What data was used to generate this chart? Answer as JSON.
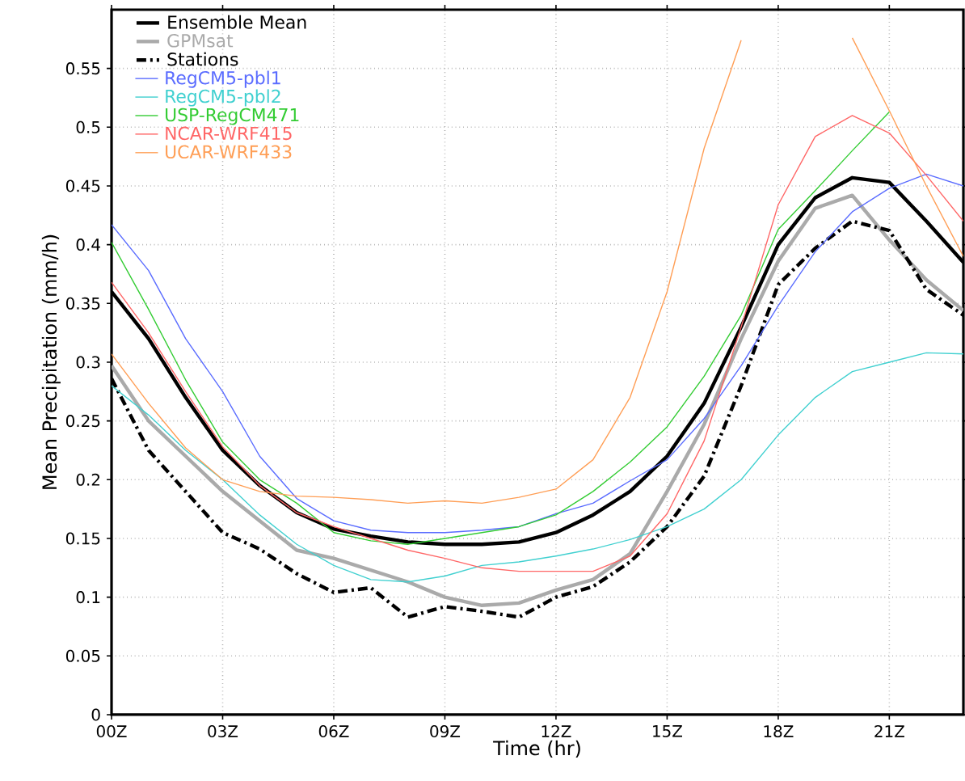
{
  "chart_data": {
    "type": "line",
    "xlabel": "Time (hr)",
    "ylabel": "Mean Precipitation (mm/h)",
    "x": [
      0,
      1,
      2,
      3,
      4,
      5,
      6,
      7,
      8,
      9,
      10,
      11,
      12,
      13,
      14,
      15,
      16,
      17,
      18,
      19,
      20,
      21,
      22,
      23
    ],
    "xlim": [
      0,
      23
    ],
    "ylim": [
      0,
      0.6
    ],
    "xticks": [
      {
        "value": 0,
        "label": "00Z"
      },
      {
        "value": 3,
        "label": "03Z"
      },
      {
        "value": 6,
        "label": "06Z"
      },
      {
        "value": 9,
        "label": "09Z"
      },
      {
        "value": 12,
        "label": "12Z"
      },
      {
        "value": 15,
        "label": "15Z"
      },
      {
        "value": 18,
        "label": "18Z"
      },
      {
        "value": 21,
        "label": "21Z"
      }
    ],
    "yticks": [
      0,
      0.05,
      0.1,
      0.15,
      0.2,
      0.25,
      0.3,
      0.35,
      0.4,
      0.45,
      0.5,
      0.55
    ],
    "grid": true,
    "legend": "top left",
    "marker": "none",
    "series": [
      {
        "name": "Ensemble Mean",
        "color": "#000000",
        "line_style": "solid",
        "values": [
          0.36,
          0.32,
          0.27,
          0.225,
          0.195,
          0.172,
          0.158,
          0.152,
          0.147,
          0.145,
          0.145,
          0.147,
          0.155,
          0.17,
          0.19,
          0.22,
          0.265,
          0.33,
          0.4,
          0.44,
          0.457,
          0.453,
          0.42,
          0.385
        ]
      },
      {
        "name": "GPMsat",
        "color": "#aaaaaa",
        "line_style": "solid",
        "values": [
          0.297,
          0.25,
          0.22,
          0.19,
          0.165,
          0.14,
          0.133,
          0.123,
          0.113,
          0.1,
          0.093,
          0.095,
          0.106,
          0.115,
          0.137,
          0.19,
          0.247,
          0.32,
          0.386,
          0.431,
          0.442,
          0.404,
          0.37,
          0.344
        ]
      },
      {
        "name": "Stations",
        "color": "#000000",
        "line_style": "dashdot",
        "values": [
          0.286,
          0.225,
          0.19,
          0.155,
          0.141,
          0.12,
          0.104,
          0.108,
          0.083,
          0.092,
          0.088,
          0.083,
          0.1,
          0.109,
          0.13,
          0.16,
          0.203,
          0.28,
          0.366,
          0.397,
          0.42,
          0.412,
          0.362,
          0.34
        ]
      },
      {
        "name": "RegCM5-pbl1",
        "color": "#5a6cff",
        "line_style": "solid",
        "values": [
          0.417,
          0.378,
          0.32,
          0.275,
          0.22,
          0.184,
          0.165,
          0.157,
          0.155,
          0.155,
          0.157,
          0.16,
          0.171,
          0.18,
          0.199,
          0.217,
          0.252,
          0.297,
          0.348,
          0.394,
          0.428,
          0.448,
          0.46,
          0.45
        ]
      },
      {
        "name": "RegCM5-pbl2",
        "color": "#40d0d0",
        "line_style": "solid",
        "values": [
          0.28,
          0.255,
          0.225,
          0.2,
          0.17,
          0.145,
          0.127,
          0.115,
          0.113,
          0.118,
          0.127,
          0.13,
          0.135,
          0.141,
          0.149,
          0.16,
          0.175,
          0.2,
          0.238,
          0.27,
          0.292,
          0.3,
          0.308,
          0.307
        ]
      },
      {
        "name": "USP-RegCM471",
        "color": "#33cc33",
        "line_style": "solid",
        "values": [
          0.402,
          0.345,
          0.285,
          0.232,
          0.2,
          0.18,
          0.155,
          0.148,
          0.145,
          0.15,
          0.155,
          0.16,
          0.17,
          0.19,
          0.215,
          0.245,
          0.288,
          0.34,
          0.413,
          0.446,
          0.48,
          0.513,
          null,
          null
        ]
      },
      {
        "name": "NCAR-WRF415",
        "color": "#ff6666",
        "line_style": "solid",
        "values": [
          0.368,
          0.325,
          0.275,
          0.228,
          0.195,
          0.172,
          0.16,
          0.15,
          0.14,
          0.133,
          0.125,
          0.122,
          0.122,
          0.122,
          0.135,
          0.171,
          0.233,
          0.33,
          0.434,
          0.492,
          0.51,
          0.495,
          0.459,
          0.42
        ]
      },
      {
        "name": "UCAR-WRF433",
        "color": "#ff9e55",
        "line_style": "solid",
        "values": [
          0.307,
          0.265,
          0.227,
          0.2,
          0.19,
          0.186,
          0.185,
          0.183,
          0.18,
          0.182,
          0.18,
          0.185,
          0.192,
          0.217,
          0.27,
          0.36,
          0.482,
          0.574,
          null,
          null,
          0.576,
          0.514,
          0.45,
          0.39
        ]
      }
    ]
  }
}
